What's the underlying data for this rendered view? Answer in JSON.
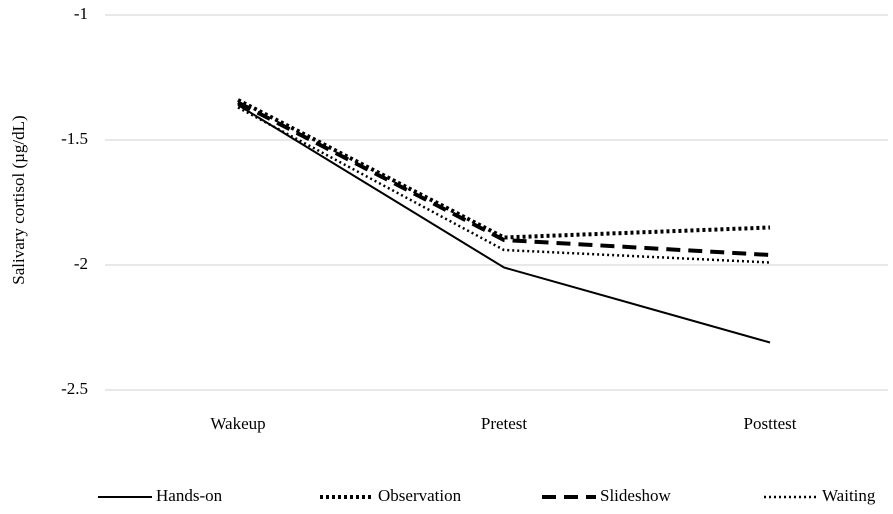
{
  "chart_data": {
    "type": "line",
    "y_label": "Salivary cortisol (µg/dL)",
    "categories": [
      "Wakeup",
      "Pretest",
      "Posttest"
    ],
    "series": [
      {
        "name": "Hands-on",
        "color": "#000000",
        "linestyle": "solid",
        "values": [
          -1.36,
          -2.01,
          -2.31
        ]
      },
      {
        "name": "Observation",
        "color": "#000000",
        "linestyle": "dotted",
        "values": [
          -1.34,
          -1.89,
          -1.85
        ]
      },
      {
        "name": "Slideshow",
        "color": "#000000",
        "linestyle": "dashed",
        "values": [
          -1.35,
          -1.9,
          -1.96
        ]
      },
      {
        "name": "Waiting",
        "color": "#000000",
        "linestyle": "fine-dotted",
        "values": [
          -1.37,
          -1.94,
          -1.99
        ]
      }
    ],
    "ylim": [
      -2.5,
      -1
    ],
    "yticks": [
      -2.5,
      -2,
      -1.5,
      -1
    ],
    "grid": true,
    "legend": "bottom"
  }
}
